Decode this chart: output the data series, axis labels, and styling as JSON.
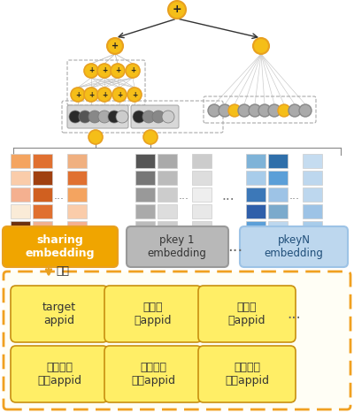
{
  "bg_color": "#ffffff",
  "orange_dark": "#E8A020",
  "orange_mid": "#F0A500",
  "orange_node": "#F5C518",
  "orange_node_fc": "#F5BE18",
  "yellow_box_fc": "#FFEE66",
  "yellow_box_ec": "#E8A020",
  "gray_box_fc": "#B8B8B8",
  "gray_box_ec": "#999999",
  "blue_box_fc": "#BDD7EE",
  "blue_box_ec": "#9DC3E6",
  "dashed_outer_fc": "#FFFDF0",
  "dashed_outer_ec": "#F0A020",
  "line_color": "#AAAAAA",
  "dark_line": "#444444",
  "plus_symbol": "+",
  "arrow_label": "聚合",
  "embedding_dots": "...",
  "bottom_row1": [
    "target\nappid",
    "用户点\n击appid",
    "用户下\n载appid"
  ],
  "bottom_row2": [
    "用户实时\n点击appid",
    "用户实时\n下载appid",
    "用户实时\n搜索appid"
  ],
  "emb_labels": [
    "sharing\nembedding",
    "pkey 1\nembedding",
    "pkeyN\nembedding"
  ],
  "orange_emb_colors": [
    [
      "#F4A460",
      "#E07030",
      "#F0B080"
    ],
    [
      "#FACCAA",
      "#A04010",
      "#E07030"
    ],
    [
      "#F4B090",
      "#D06020",
      "#F4A460"
    ],
    [
      "#FAEBD7",
      "#E07030",
      "#FACCAA"
    ],
    [
      "#6B3010",
      "#F0B090",
      "#F4B090"
    ]
  ],
  "gray_emb_colors": [
    [
      "#555555",
      "#AAAAAA",
      "#CCCCCC"
    ],
    [
      "#777777",
      "#BBBBBB",
      "#DDDDDD"
    ],
    [
      "#999999",
      "#CCCCCC",
      "#EEEEEE"
    ],
    [
      "#AAAAAA",
      "#DDDDDD",
      "#E8E8E8"
    ],
    [
      "#BBBBBB",
      "#CCCCCC",
      "#D8D8D8"
    ]
  ],
  "blue_emb_colors": [
    [
      "#7EB3D8",
      "#2F6FAA",
      "#C5DCF0"
    ],
    [
      "#A8CCEA",
      "#5B9FD8",
      "#BDD7EE"
    ],
    [
      "#3C78B8",
      "#9DC3E6",
      "#BDD7EE"
    ],
    [
      "#2F5FAA",
      "#7BAACC",
      "#9DC3E6"
    ],
    [
      "#5B9FD8",
      "#BDD7EE",
      "#A8CCEA"
    ]
  ]
}
